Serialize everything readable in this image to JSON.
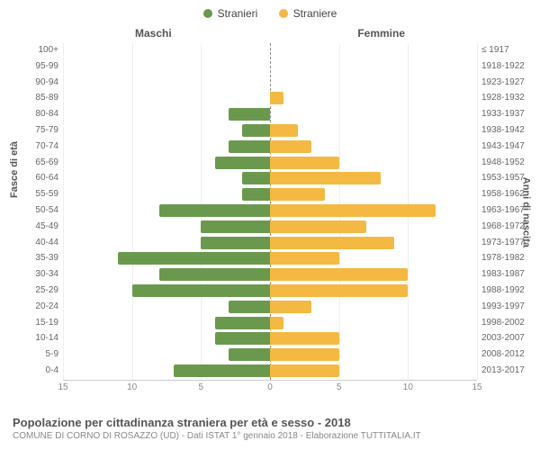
{
  "legend": {
    "male": "Stranieri",
    "female": "Straniere"
  },
  "male_color": "#6a994e",
  "female_color": "#f4b942",
  "header_male": "Maschi",
  "header_female": "Femmine",
  "y_left_title": "Fasce di età",
  "y_right_title": "Anni di nascita",
  "title": "Popolazione per cittadinanza straniera per età e sesso - 2018",
  "subtitle": "COMUNE DI CORNO DI ROSAZZO (UD) - Dati ISTAT 1° gennaio 2018 - Elaborazione TUTTITALIA.IT",
  "xlim": 15,
  "xticks": [
    15,
    10,
    5,
    0,
    5,
    10,
    15
  ],
  "grid_positions": [
    -15,
    -10,
    -5,
    5,
    10,
    15
  ],
  "row_height": 17.8,
  "rows": [
    {
      "age": "100+",
      "year": "≤ 1917",
      "m": 0,
      "f": 0
    },
    {
      "age": "95-99",
      "year": "1918-1922",
      "m": 0,
      "f": 0
    },
    {
      "age": "90-94",
      "year": "1923-1927",
      "m": 0,
      "f": 0
    },
    {
      "age": "85-89",
      "year": "1928-1932",
      "m": 0,
      "f": 1
    },
    {
      "age": "80-84",
      "year": "1933-1937",
      "m": 3,
      "f": 0
    },
    {
      "age": "75-79",
      "year": "1938-1942",
      "m": 2,
      "f": 2
    },
    {
      "age": "70-74",
      "year": "1943-1947",
      "m": 3,
      "f": 3
    },
    {
      "age": "65-69",
      "year": "1948-1952",
      "m": 4,
      "f": 5
    },
    {
      "age": "60-64",
      "year": "1953-1957",
      "m": 2,
      "f": 8
    },
    {
      "age": "55-59",
      "year": "1958-1962",
      "m": 2,
      "f": 4
    },
    {
      "age": "50-54",
      "year": "1963-1967",
      "m": 8,
      "f": 12
    },
    {
      "age": "45-49",
      "year": "1968-1972",
      "m": 5,
      "f": 7
    },
    {
      "age": "40-44",
      "year": "1973-1977",
      "m": 5,
      "f": 9
    },
    {
      "age": "35-39",
      "year": "1978-1982",
      "m": 11,
      "f": 5
    },
    {
      "age": "30-34",
      "year": "1983-1987",
      "m": 8,
      "f": 10
    },
    {
      "age": "25-29",
      "year": "1988-1992",
      "m": 10,
      "f": 10
    },
    {
      "age": "20-24",
      "year": "1993-1997",
      "m": 3,
      "f": 3
    },
    {
      "age": "15-19",
      "year": "1998-2002",
      "m": 4,
      "f": 1
    },
    {
      "age": "10-14",
      "year": "2003-2007",
      "m": 4,
      "f": 5
    },
    {
      "age": "5-9",
      "year": "2008-2012",
      "m": 3,
      "f": 5
    },
    {
      "age": "0-4",
      "year": "2013-2017",
      "m": 7,
      "f": 5
    }
  ]
}
